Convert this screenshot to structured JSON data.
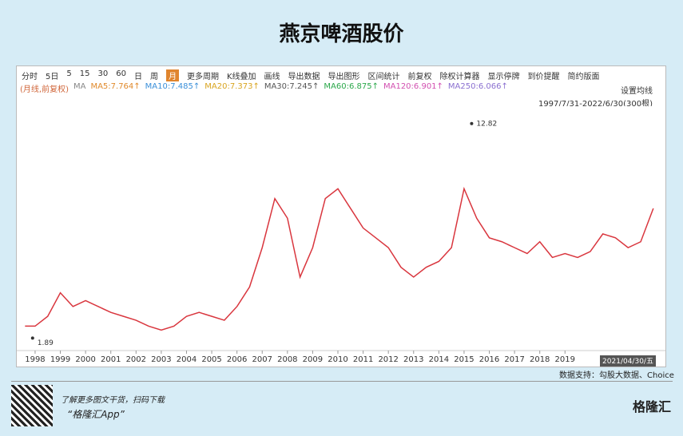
{
  "header": {
    "title": "燕京啤酒股价"
  },
  "toolbar": [
    "分时",
    "5日",
    "5",
    "15",
    "30",
    "60",
    "日",
    "周",
    "月",
    "更多周期",
    "K线叠加",
    "画线",
    "导出数据",
    "导出图形",
    "区间统计",
    "前复权",
    "除权计算器",
    "显示停牌",
    "到价提醒",
    "简约版面"
  ],
  "legend": {
    "prefix": "(月线,前复权)",
    "ma": "MA",
    "items": [
      {
        "label": "MA5:7.764↑",
        "color": "#e08a2c"
      },
      {
        "label": "MA10:7.485↑",
        "color": "#3a8fd9"
      },
      {
        "label": "MA20:7.373↑",
        "color": "#d9a520"
      },
      {
        "label": "MA30:7.245↑",
        "color": "#555555"
      },
      {
        "label": "MA60:6.875↑",
        "color": "#2aa84a"
      },
      {
        "label": "MA120:6.901↑",
        "color": "#d24fb0"
      },
      {
        "label": "MA250:6.066↑",
        "color": "#8a6fd0"
      }
    ],
    "settings": "设置均线",
    "range": "1997/7/31-2022/6/30(300根)"
  },
  "chart_data": {
    "type": "line",
    "color": "#d9363e",
    "x": [
      1997.6,
      1998.0,
      1998.5,
      1999.0,
      1999.5,
      2000.0,
      2000.5,
      2001.0,
      2001.5,
      2002.0,
      2002.5,
      2003.0,
      2003.5,
      2004.0,
      2004.5,
      2005.0,
      2005.5,
      2006.0,
      2006.5,
      2007.0,
      2007.5,
      2008.0,
      2008.5,
      2009.0,
      2009.5,
      2010.0,
      2010.5,
      2011.0,
      2011.5,
      2012.0,
      2012.5,
      2013.0,
      2013.5,
      2014.0,
      2014.5,
      2015.0,
      2015.5,
      2016.0,
      2016.5,
      2017.0,
      2017.5,
      2018.0,
      2018.5,
      2019.0,
      2019.5,
      2020.0,
      2020.5,
      2021.0,
      2021.5,
      2022.0,
      2022.5
    ],
    "values": [
      2.5,
      2.5,
      3.0,
      4.2,
      3.5,
      3.8,
      3.5,
      3.2,
      3.0,
      2.8,
      2.5,
      2.3,
      2.5,
      3.0,
      3.2,
      3.0,
      2.8,
      3.5,
      4.5,
      6.5,
      9.0,
      8.0,
      5.0,
      6.5,
      9.0,
      9.5,
      8.5,
      7.5,
      7.0,
      6.5,
      5.5,
      5.0,
      5.5,
      5.8,
      6.5,
      9.5,
      8.0,
      7.0,
      6.8,
      6.5,
      6.2,
      6.8,
      6.0,
      6.2,
      6.0,
      6.3,
      7.2,
      7.0,
      6.5,
      6.8,
      8.5
    ],
    "annotations": [
      {
        "x": 2015.3,
        "y": 12.82
      },
      {
        "x": 1997.9,
        "y": 1.89
      }
    ],
    "xlim": [
      1997.4,
      2022.6
    ],
    "ylim": [
      1.5,
      13.3
    ],
    "xticks": [
      1998,
      1999,
      2000,
      2001,
      2002,
      2003,
      2004,
      2005,
      2006,
      2007,
      2008,
      2009,
      2010,
      2011,
      2012,
      2013,
      2014,
      2015,
      2016,
      2017,
      2018,
      2019
    ],
    "date_badge": "2021/04/30/五"
  },
  "footer": {
    "source": "数据支持：勾股大数据、Choice",
    "promo": "了解更多图文干货，扫码下载",
    "app": "“格隆汇App”",
    "brand": "格隆汇"
  }
}
